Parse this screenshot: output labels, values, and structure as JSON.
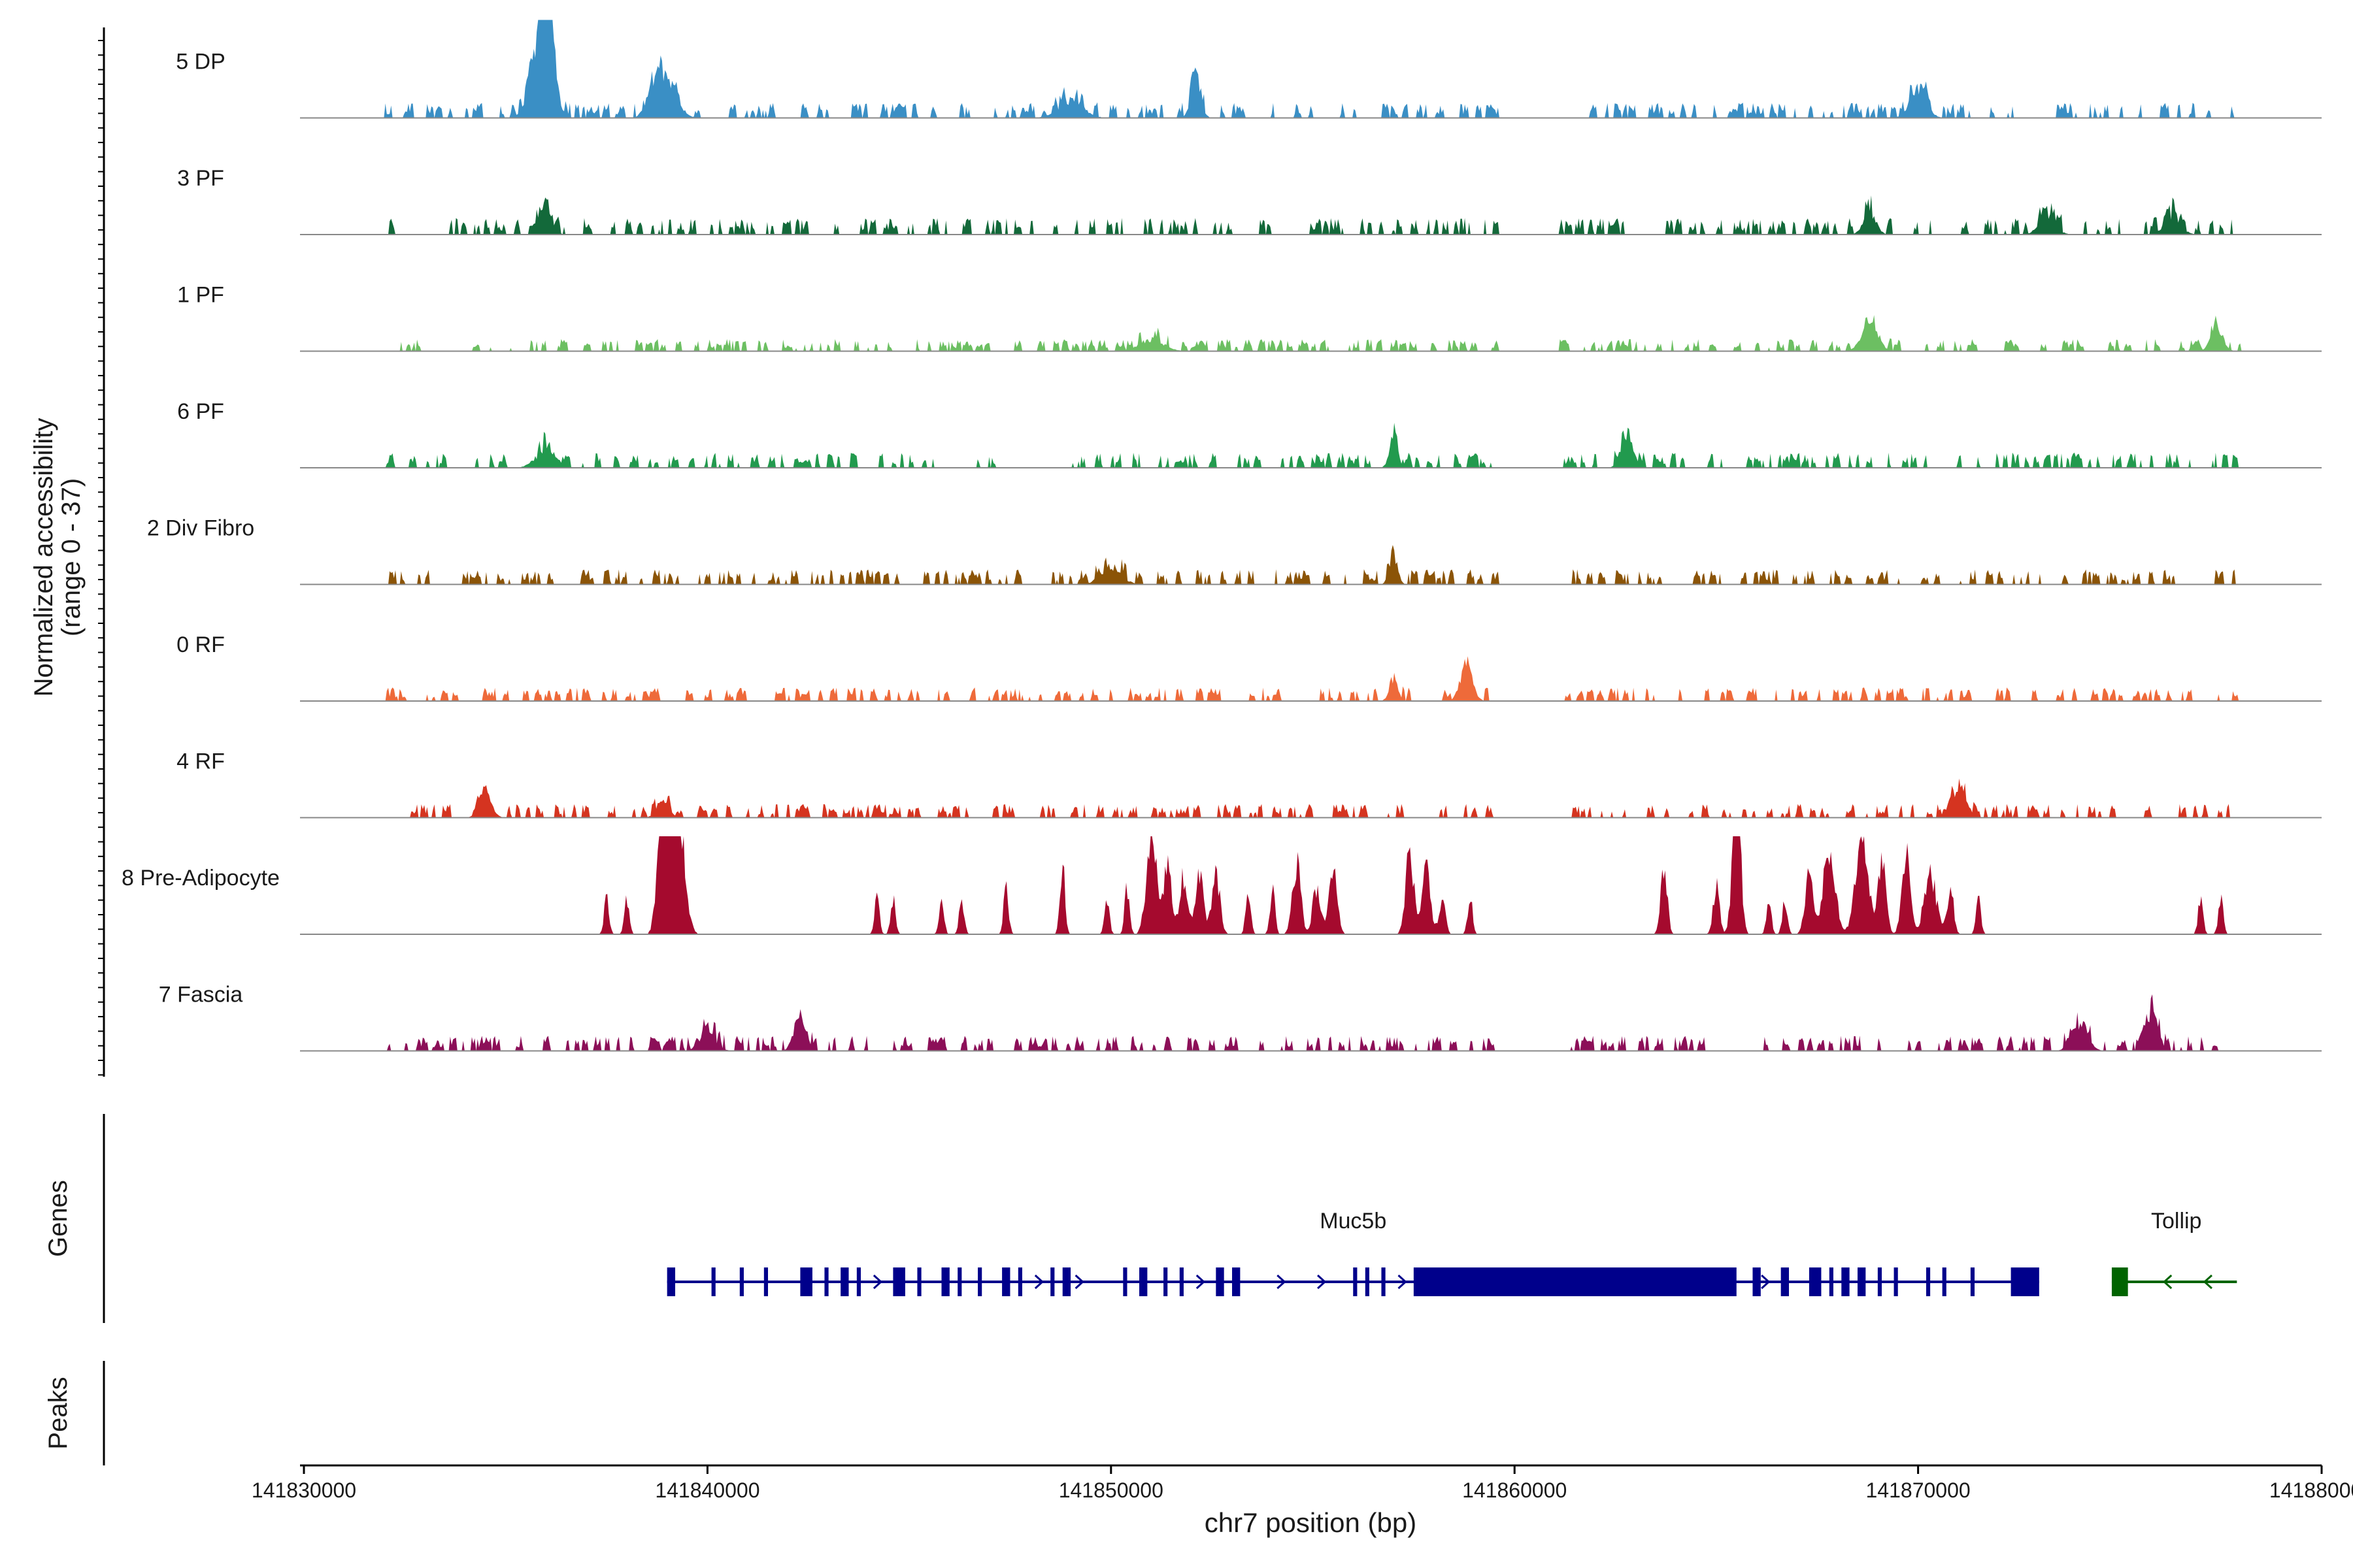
{
  "chart_data": {
    "type": "area",
    "title": "",
    "ylabel_line1": "Normalized accessibility",
    "ylabel_line2": "(range 0 - 37)",
    "ylim": [
      0,
      37
    ],
    "xlabel": "chr7 position (bp)",
    "xlim": [
      141830000,
      141880000
    ],
    "xticks": [
      {
        "value": 141830000,
        "label": "141830000"
      },
      {
        "value": 141840000,
        "label": "141840000"
      },
      {
        "value": 141850000,
        "label": "141850000"
      },
      {
        "value": 141860000,
        "label": "141860000"
      },
      {
        "value": 141870000,
        "label": "141870000"
      },
      {
        "value": 141880000,
        "label": "141880000"
      }
    ],
    "series": [
      {
        "name": "5 DP",
        "color": "#3a8fc5",
        "noise": 2.0,
        "gaps": [
          [
            141833700,
            141833850
          ],
          [
            141841800,
            141842200
          ],
          [
            141859600,
            141861100
          ],
          [
            141872800,
            141873100
          ]
        ],
        "peaks": [
          [
            141836000,
            22,
            180
          ],
          [
            141835700,
            6,
            200
          ],
          [
            141839000,
            6,
            250
          ],
          [
            141838700,
            4,
            200
          ],
          [
            141852100,
            7,
            120
          ],
          [
            141870000,
            5,
            200
          ],
          [
            141849000,
            3,
            300
          ]
        ]
      },
      {
        "name": "3 PF",
        "color": "#13693a",
        "noise": 2.2,
        "gaps": [
          [
            141833100,
            141833400
          ],
          [
            141849600,
            141849900
          ],
          [
            141859600,
            141861000
          ],
          [
            141863300,
            141863600
          ]
        ],
        "peaks": [
          [
            141836000,
            4,
            150
          ],
          [
            141868800,
            4,
            150
          ],
          [
            141873200,
            3,
            200
          ],
          [
            141876300,
            3,
            200
          ]
        ]
      },
      {
        "name": "1 PF",
        "color": "#6cbf62",
        "noise": 1.6,
        "gaps": [
          [
            141859600,
            141861000
          ]
        ],
        "peaks": [
          [
            141868800,
            5,
            200
          ],
          [
            141877400,
            4,
            150
          ],
          [
            141851000,
            2,
            300
          ]
        ]
      },
      {
        "name": "6 PF",
        "color": "#229a4e",
        "noise": 2.0,
        "gaps": [
          [
            141834400,
            141834600
          ],
          [
            141840000,
            141840100
          ],
          [
            141847400,
            141848900
          ],
          [
            141853700,
            141854100
          ],
          [
            141859600,
            141861000
          ],
          [
            141870300,
            141870600
          ]
        ],
        "peaks": [
          [
            141862800,
            6,
            150
          ],
          [
            141857000,
            5,
            100
          ],
          [
            141836000,
            3,
            250
          ]
        ]
      },
      {
        "name": "2 Div Fibro",
        "color": "#8b5407",
        "noise": 2.0,
        "gaps": [
          [
            141838400,
            141838600
          ],
          [
            141844800,
            141845300
          ],
          [
            141859600,
            141861200
          ],
          [
            141876800,
            141877300
          ]
        ],
        "peaks": [
          [
            141857000,
            5,
            100
          ],
          [
            141850000,
            3,
            250
          ]
        ]
      },
      {
        "name": "0 RF",
        "color": "#ee6a3a",
        "noise": 1.8,
        "gaps": [
          [
            141859600,
            141861000
          ]
        ],
        "peaks": [
          [
            141858800,
            6,
            150
          ],
          [
            141857000,
            4,
            100
          ]
        ]
      },
      {
        "name": "4 RF",
        "color": "#d53420",
        "noise": 1.8,
        "gaps": [
          [
            141837800,
            141838100
          ],
          [
            141847600,
            141848000
          ],
          [
            141859600,
            141861000
          ]
        ],
        "peaks": [
          [
            141834500,
            4,
            150
          ],
          [
            141871000,
            5,
            200
          ],
          [
            141838900,
            3,
            150
          ]
        ]
      },
      {
        "name": "8 Pre-Adipocyte",
        "color": "#a50a2e",
        "noise": 0,
        "gaps": [],
        "peaks": [
          [
            141838900,
            30,
            120
          ],
          [
            141837500,
            6,
            60
          ],
          [
            141838000,
            6,
            60
          ],
          [
            141839300,
            18,
            150
          ],
          [
            141839100,
            10,
            120
          ],
          [
            141844200,
            6,
            60
          ],
          [
            141844600,
            6,
            60
          ],
          [
            141845800,
            6,
            60
          ],
          [
            141846300,
            6,
            60
          ],
          [
            141847400,
            8,
            60
          ],
          [
            141848800,
            12,
            60
          ],
          [
            141849900,
            6,
            60
          ],
          [
            141850400,
            8,
            60
          ],
          [
            141851000,
            18,
            120
          ],
          [
            141851400,
            12,
            100
          ],
          [
            141851800,
            10,
            100
          ],
          [
            141852200,
            10,
            100
          ],
          [
            141852600,
            10,
            100
          ],
          [
            141853400,
            8,
            60
          ],
          [
            141854000,
            8,
            60
          ],
          [
            141854600,
            12,
            100
          ],
          [
            141855100,
            8,
            100
          ],
          [
            141855500,
            12,
            100
          ],
          [
            141857400,
            14,
            100
          ],
          [
            141857800,
            12,
            100
          ],
          [
            141858200,
            6,
            80
          ],
          [
            141858900,
            6,
            60
          ],
          [
            141863700,
            12,
            80
          ],
          [
            141865000,
            8,
            80
          ],
          [
            141865500,
            24,
            100
          ],
          [
            141866300,
            6,
            60
          ],
          [
            141866700,
            6,
            60
          ],
          [
            141867300,
            10,
            100
          ],
          [
            141867800,
            14,
            150
          ],
          [
            141868600,
            18,
            150
          ],
          [
            141869100,
            12,
            100
          ],
          [
            141869700,
            14,
            100
          ],
          [
            141870300,
            10,
            150
          ],
          [
            141870800,
            8,
            80
          ],
          [
            141871500,
            6,
            60
          ],
          [
            141877000,
            6,
            60
          ],
          [
            141877500,
            6,
            60
          ]
        ]
      },
      {
        "name": "7 Fascia",
        "color": "#8c0f58",
        "noise": 2.0,
        "gaps": [
          [
            141844000,
            141844300
          ],
          [
            141853800,
            141854200
          ],
          [
            141859600,
            141861100
          ],
          [
            141864900,
            141865100
          ]
        ],
        "peaks": [
          [
            141842300,
            6,
            150
          ],
          [
            141875800,
            7,
            150
          ],
          [
            141874000,
            4,
            200
          ],
          [
            141840000,
            3,
            200
          ]
        ]
      }
    ],
    "genes_label": "Genes",
    "peaks_label": "Peaks",
    "genes": [
      {
        "name": "Muc5b",
        "strand": "+",
        "color": "#00008b",
        "start": 141839000,
        "end": 141873000,
        "exons": [
          [
            141839000,
            141839200
          ],
          [
            141840100,
            141840200
          ],
          [
            141840800,
            141840900
          ],
          [
            141841400,
            141841500
          ],
          [
            141842300,
            141842600
          ],
          [
            141842900,
            141843000
          ],
          [
            141843300,
            141843500
          ],
          [
            141843700,
            141843800
          ],
          [
            141844600,
            141844900
          ],
          [
            141845200,
            141845300
          ],
          [
            141845800,
            141846000
          ],
          [
            141846200,
            141846300
          ],
          [
            141846700,
            141846800
          ],
          [
            141847300,
            141847500
          ],
          [
            141847700,
            141847800
          ],
          [
            141848500,
            141848600
          ],
          [
            141848800,
            141849000
          ],
          [
            141850300,
            141850400
          ],
          [
            141850700,
            141850900
          ],
          [
            141851300,
            141851400
          ],
          [
            141851700,
            141851800
          ],
          [
            141852600,
            141852800
          ],
          [
            141853000,
            141853200
          ],
          [
            141856000,
            141856100
          ],
          [
            141856300,
            141856400
          ],
          [
            141856700,
            141856800
          ],
          [
            141857500,
            141865500
          ],
          [
            141865900,
            141866100
          ],
          [
            141866600,
            141866800
          ],
          [
            141867300,
            141867600
          ],
          [
            141867800,
            141867900
          ],
          [
            141868100,
            141868300
          ],
          [
            141868500,
            141868700
          ],
          [
            141869000,
            141869100
          ],
          [
            141869400,
            141869500
          ],
          [
            141870200,
            141870300
          ],
          [
            141870600,
            141870700
          ],
          [
            141871300,
            141871400
          ],
          [
            141872300,
            141873000
          ]
        ],
        "label_x": 141856000
      },
      {
        "name": "Tollip",
        "strand": "-",
        "color": "#006400",
        "start": 141874800,
        "end": 141877900,
        "exons": [
          [
            141874800,
            141875200
          ]
        ],
        "label_x": 141876400
      }
    ]
  }
}
